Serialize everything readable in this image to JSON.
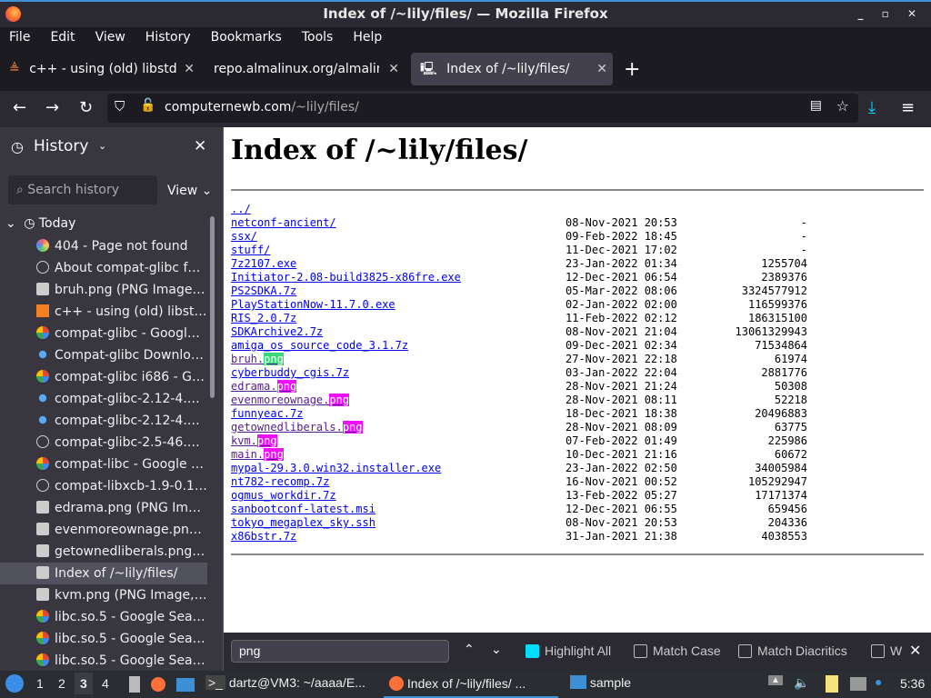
{
  "window": {
    "title": "Index of /~lily/files/ — Mozilla Firefox"
  },
  "menu": [
    "File",
    "Edit",
    "View",
    "History",
    "Bookmarks",
    "Tools",
    "Help"
  ],
  "tabs": [
    {
      "label": "c++ - using (old) libstdc++"
    },
    {
      "label": "repo.almalinux.org/almalinux"
    },
    {
      "label": "Index of /~lily/files/"
    }
  ],
  "url": {
    "domain": "computernewb.com",
    "path": "/~lily/files/"
  },
  "sidebar": {
    "title": "History",
    "search_placeholder": "Search history",
    "view_label": "View",
    "group": "Today",
    "items": [
      {
        "label": "404 - Page not found",
        "icon": "puzzle"
      },
      {
        "label": "About compat-glibc for ...",
        "icon": "globe"
      },
      {
        "label": "bruh.png (PNG Image, 8...",
        "icon": "computer"
      },
      {
        "label": "c++ - using (old) libstdc...",
        "icon": "stackoverflow"
      },
      {
        "label": "compat-glibc - Google S...",
        "icon": "google"
      },
      {
        "label": "Compat-glibc Download ...",
        "icon": "dot"
      },
      {
        "label": "compat-glibc i686 - Goo...",
        "icon": "google"
      },
      {
        "label": "compat-glibc-2.12-4.el7...",
        "icon": "dot"
      },
      {
        "label": "compat-glibc-2.12-4.el7...",
        "icon": "dot"
      },
      {
        "label": "compat-glibc-2.5-46.2.0...",
        "icon": "globe"
      },
      {
        "label": "compat-libc - Google Se...",
        "icon": "google"
      },
      {
        "label": "compat-libxcb-1.9-0.1.el...",
        "icon": "globe"
      },
      {
        "label": "edrama.png (PNG Imag...",
        "icon": "computer"
      },
      {
        "label": "evenmoreownage.png (...",
        "icon": "computer"
      },
      {
        "label": "getownedliberals.png (P...",
        "icon": "computer"
      },
      {
        "label": "Index of /~lily/files/",
        "icon": "computer",
        "selected": true
      },
      {
        "label": "kvm.png (PNG Image, 1...",
        "icon": "computer"
      },
      {
        "label": "libc.so.5 - Google Search",
        "icon": "google"
      },
      {
        "label": "libc.so.5 - Google Search",
        "icon": "google"
      },
      {
        "label": "libc.so.5 - Google Search",
        "icon": "google"
      }
    ]
  },
  "page": {
    "heading": "Index of /~lily/files/",
    "entries": [
      {
        "name": "../",
        "date": "",
        "size": ""
      },
      {
        "name": "netconf-ancient/",
        "date": "08-Nov-2021 20:53",
        "size": "-"
      },
      {
        "name": "ssx/",
        "date": "09-Feb-2022 18:45",
        "size": "-"
      },
      {
        "name": "stuff/",
        "date": "11-Dec-2021 17:02",
        "size": "-"
      },
      {
        "name": "7z2107.exe",
        "date": "23-Jan-2022 01:34",
        "size": "1255704"
      },
      {
        "name": "Initiator-2.08-build3825-x86fre.exe",
        "date": "12-Dec-2021 06:54",
        "size": "2389376"
      },
      {
        "name": "PS2SDKA.7z",
        "date": "05-Mar-2022 08:06",
        "size": "3324577912"
      },
      {
        "name": "PlayStationNow-11.7.0.exe",
        "date": "02-Jan-2022 02:00",
        "size": "116599376"
      },
      {
        "name": "RIS_2.0.7z",
        "date": "11-Feb-2022 02:12",
        "size": "186315100"
      },
      {
        "name": "SDKArchive2.7z",
        "date": "08-Nov-2021 21:04",
        "size": "13061329943"
      },
      {
        "name": "amiga_os_source_code_3.1.7z",
        "date": "09-Dec-2021 02:34",
        "size": "71534864"
      },
      {
        "name": "bruh.",
        "match": "png",
        "current": true,
        "visited": true,
        "date": "27-Nov-2021 22:18",
        "size": "61974"
      },
      {
        "name": "cyberbuddy_cgis.7z",
        "date": "03-Jan-2022 22:04",
        "size": "2881776"
      },
      {
        "name": "edrama.",
        "match": "png",
        "visited": true,
        "date": "28-Nov-2021 21:24",
        "size": "50308"
      },
      {
        "name": "evenmoreownage.",
        "match": "png",
        "visited": true,
        "date": "28-Nov-2021 08:11",
        "size": "52218"
      },
      {
        "name": "funnyeac.7z",
        "date": "18-Dec-2021 18:38",
        "size": "20496883"
      },
      {
        "name": "getownedliberals.",
        "match": "png",
        "visited": true,
        "date": "28-Nov-2021 08:09",
        "size": "63775"
      },
      {
        "name": "kvm.",
        "match": "png",
        "visited": true,
        "date": "07-Feb-2022 01:49",
        "size": "225986"
      },
      {
        "name": "main.",
        "match": "png",
        "visited": true,
        "date": "10-Dec-2021 21:16",
        "size": "60672"
      },
      {
        "name": "mypal-29.3.0.win32.installer.exe",
        "date": "23-Jan-2022 02:50",
        "size": "34005984"
      },
      {
        "name": "nt782-recomp.7z",
        "date": "16-Nov-2021 00:52",
        "size": "105292947"
      },
      {
        "name": "ogmus_workdir.7z",
        "date": "13-Feb-2022 05:27",
        "size": "17171374"
      },
      {
        "name": "sanbootconf-latest.msi",
        "date": "12-Dec-2021 06:55",
        "size": "659456"
      },
      {
        "name": "tokyo_megaplex_sky.ssh",
        "date": "08-Nov-2021 20:53",
        "size": "204336"
      },
      {
        "name": "x86bstr.7z",
        "date": "31-Jan-2021 21:38",
        "size": "4038553"
      }
    ]
  },
  "findbar": {
    "query": "png",
    "highlight_all": "Highlight All",
    "match_case": "Match Case",
    "match_diacritics": "Match Diacritics",
    "whole_words": "W"
  },
  "taskbar": {
    "workspaces": [
      "1",
      "2",
      "3",
      "4"
    ],
    "tasks": [
      {
        "label": "dartz@VM3: ~/aaaa/E..."
      },
      {
        "label": "Index of /~lily/files/ ..."
      },
      {
        "label": "sample"
      }
    ],
    "clock": "5:36"
  },
  "colors": {
    "accent": "#00ddff",
    "highlight_current": "#38d878",
    "highlight_other": "#ef0fff",
    "link": "#0000ee",
    "visited": "#551a8b"
  }
}
